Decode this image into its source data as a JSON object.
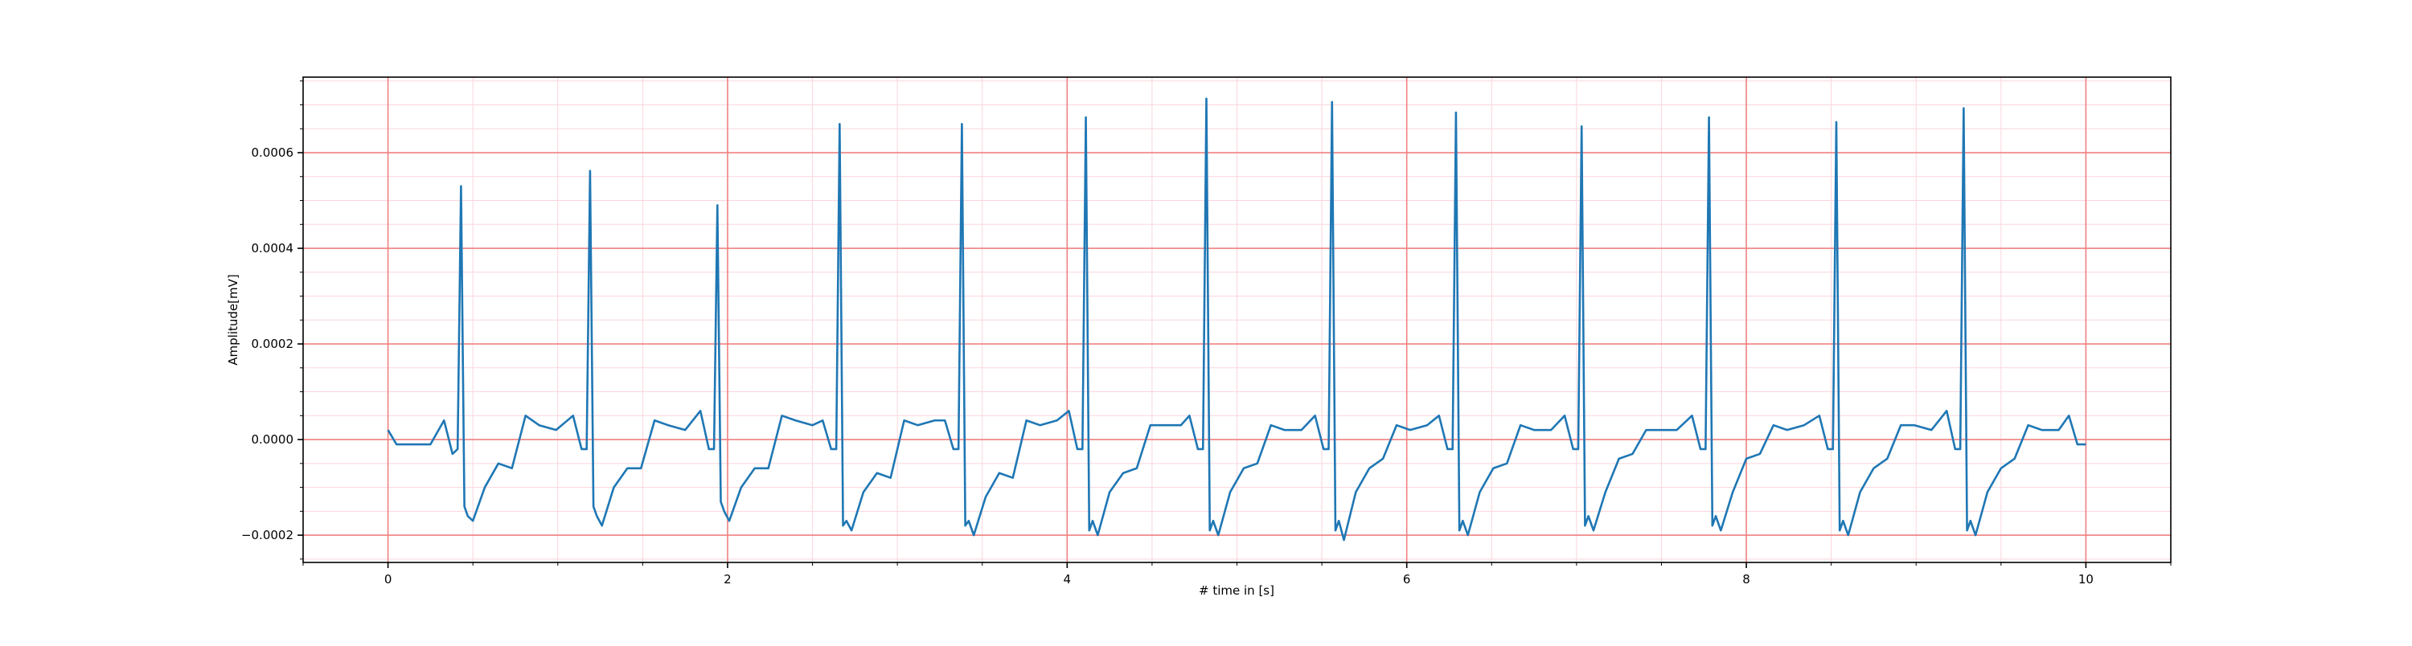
{
  "chart_data": {
    "type": "line",
    "xlabel": "# time in [s]",
    "ylabel": "Amplitude[mV]",
    "xlim": [
      -0.5,
      10.5
    ],
    "ylim": [
      -0.000257,
      0.000758
    ],
    "xticks": [
      0,
      2,
      4,
      6,
      8,
      10
    ],
    "yticks": [
      {
        "value": -0.0002,
        "label": "−0.0002"
      },
      {
        "value": 0,
        "label": "0.0000"
      },
      {
        "value": 0.0002,
        "label": "0.0002"
      },
      {
        "value": 0.0004,
        "label": "0.0004"
      },
      {
        "value": 0.0006,
        "label": "0.0006"
      }
    ],
    "xminorticks": [
      -0.5,
      0,
      0.5,
      1,
      1.5,
      2,
      2.5,
      3,
      3.5,
      4,
      4.5,
      5,
      5.5,
      6,
      6.5,
      7,
      7.5,
      8,
      8.5,
      9,
      9.5,
      10,
      10.5
    ],
    "yminorticks": [
      -0.00025,
      -0.0002,
      -0.00015,
      -0.0001,
      -5e-05,
      0,
      5e-05,
      0.0001,
      0.00015,
      0.0002,
      0.00025,
      0.0003,
      0.00035,
      0.0004,
      0.00045,
      0.0005,
      0.00055,
      0.0006,
      0.00065,
      0.0007,
      0.00075
    ],
    "grid": true,
    "major_grid_color": "#f08080",
    "minor_grid_color": "#fbd5dc",
    "color": "#1f77b4",
    "x": [
      0,
      0.05,
      0.15,
      0.25,
      0.33,
      0.38,
      0.41,
      0.43,
      0.45,
      0.47,
      0.5,
      0.57,
      0.65,
      0.73,
      0.81,
      0.89,
      0.99,
      1.09,
      1.14,
      1.17,
      1.19,
      1.21,
      1.23,
      1.26,
      1.33,
      1.41,
      1.49,
      1.57,
      1.65,
      1.75,
      1.84,
      1.89,
      1.92,
      1.94,
      1.96,
      1.98,
      2.01,
      2.08,
      2.16,
      2.24,
      2.32,
      2.4,
      2.5,
      2.56,
      2.61,
      2.64,
      2.66,
      2.68,
      2.7,
      2.73,
      2.8,
      2.88,
      2.96,
      3.04,
      3.12,
      3.22,
      3.28,
      3.33,
      3.36,
      3.38,
      3.4,
      3.42,
      3.45,
      3.52,
      3.6,
      3.68,
      3.76,
      3.84,
      3.94,
      4.01,
      4.06,
      4.09,
      4.11,
      4.13,
      4.15,
      4.18,
      4.25,
      4.33,
      4.41,
      4.49,
      4.57,
      4.67,
      4.72,
      4.77,
      4.8,
      4.82,
      4.84,
      4.86,
      4.89,
      4.96,
      5.04,
      5.12,
      5.2,
      5.28,
      5.38,
      5.46,
      5.51,
      5.54,
      5.56,
      5.58,
      5.6,
      5.63,
      5.7,
      5.78,
      5.86,
      5.94,
      6.02,
      6.12,
      6.19,
      6.24,
      6.27,
      6.29,
      6.31,
      6.33,
      6.36,
      6.43,
      6.51,
      6.59,
      6.67,
      6.75,
      6.85,
      6.93,
      6.98,
      7.01,
      7.03,
      7.05,
      7.07,
      7.1,
      7.17,
      7.25,
      7.33,
      7.41,
      7.49,
      7.59,
      7.68,
      7.73,
      7.76,
      7.78,
      7.8,
      7.82,
      7.85,
      7.92,
      8.0,
      8.08,
      8.16,
      8.24,
      8.34,
      8.43,
      8.48,
      8.51,
      8.53,
      8.55,
      8.57,
      8.6,
      8.67,
      8.75,
      8.83,
      8.91,
      8.99,
      9.09,
      9.18,
      9.23,
      9.26,
      9.28,
      9.3,
      9.32,
      9.35,
      9.42,
      9.5,
      9.58,
      9.66,
      9.74,
      9.84,
      9.9,
      9.95,
      10.0
    ],
    "values": [
      2e-05,
      -1e-05,
      -1e-05,
      -1e-05,
      4e-05,
      -3e-05,
      -2e-05,
      0.00053,
      -0.00014,
      -0.00016,
      -0.00017,
      -0.0001,
      -5e-05,
      -6e-05,
      5e-05,
      3e-05,
      2e-05,
      5e-05,
      -2e-05,
      -2e-05,
      0.000562,
      -0.00014,
      -0.00016,
      -0.00018,
      -0.0001,
      -6e-05,
      -6e-05,
      4e-05,
      3e-05,
      2e-05,
      6e-05,
      -2e-05,
      -2e-05,
      0.00049,
      -0.00013,
      -0.00015,
      -0.00017,
      -0.0001,
      -6e-05,
      -6e-05,
      5e-05,
      4e-05,
      3e-05,
      4e-05,
      -2e-05,
      -2e-05,
      0.00066,
      -0.00018,
      -0.00017,
      -0.00019,
      -0.00011,
      -7e-05,
      -8e-05,
      4e-05,
      3e-05,
      4e-05,
      4e-05,
      -2e-05,
      -2e-05,
      0.00066,
      -0.00018,
      -0.00017,
      -0.0002,
      -0.00012,
      -7e-05,
      -8e-05,
      4e-05,
      3e-05,
      4e-05,
      6e-05,
      -2e-05,
      -2e-05,
      0.000674,
      -0.00019,
      -0.00017,
      -0.0002,
      -0.00011,
      -7e-05,
      -6e-05,
      3e-05,
      3e-05,
      3e-05,
      5e-05,
      -2e-05,
      -2e-05,
      0.000713,
      -0.00019,
      -0.00017,
      -0.0002,
      -0.00011,
      -6e-05,
      -5e-05,
      3e-05,
      2e-05,
      2e-05,
      5e-05,
      -2e-05,
      -2e-05,
      0.000706,
      -0.00019,
      -0.00017,
      -0.00021,
      -0.00011,
      -6e-05,
      -4e-05,
      3e-05,
      2e-05,
      3e-05,
      5e-05,
      -2e-05,
      -2e-05,
      0.000684,
      -0.00019,
      -0.00017,
      -0.0002,
      -0.00011,
      -6e-05,
      -5e-05,
      3e-05,
      2e-05,
      2e-05,
      5e-05,
      -2e-05,
      -2e-05,
      0.000655,
      -0.00018,
      -0.00016,
      -0.00019,
      -0.00011,
      -4e-05,
      -3e-05,
      2e-05,
      2e-05,
      2e-05,
      5e-05,
      -2e-05,
      -2e-05,
      0.000674,
      -0.00018,
      -0.00016,
      -0.00019,
      -0.00011,
      -4e-05,
      -3e-05,
      3e-05,
      2e-05,
      3e-05,
      5e-05,
      -2e-05,
      -2e-05,
      0.000664,
      -0.00019,
      -0.00017,
      -0.0002,
      -0.00011,
      -6e-05,
      -4e-05,
      3e-05,
      3e-05,
      2e-05,
      6e-05,
      -2e-05,
      -2e-05,
      0.000693,
      -0.00019,
      -0.00017,
      -0.0002,
      -0.00011,
      -6e-05,
      -4e-05,
      3e-05,
      2e-05,
      2e-05,
      5e-05,
      -1e-05,
      -1e-05
    ]
  }
}
